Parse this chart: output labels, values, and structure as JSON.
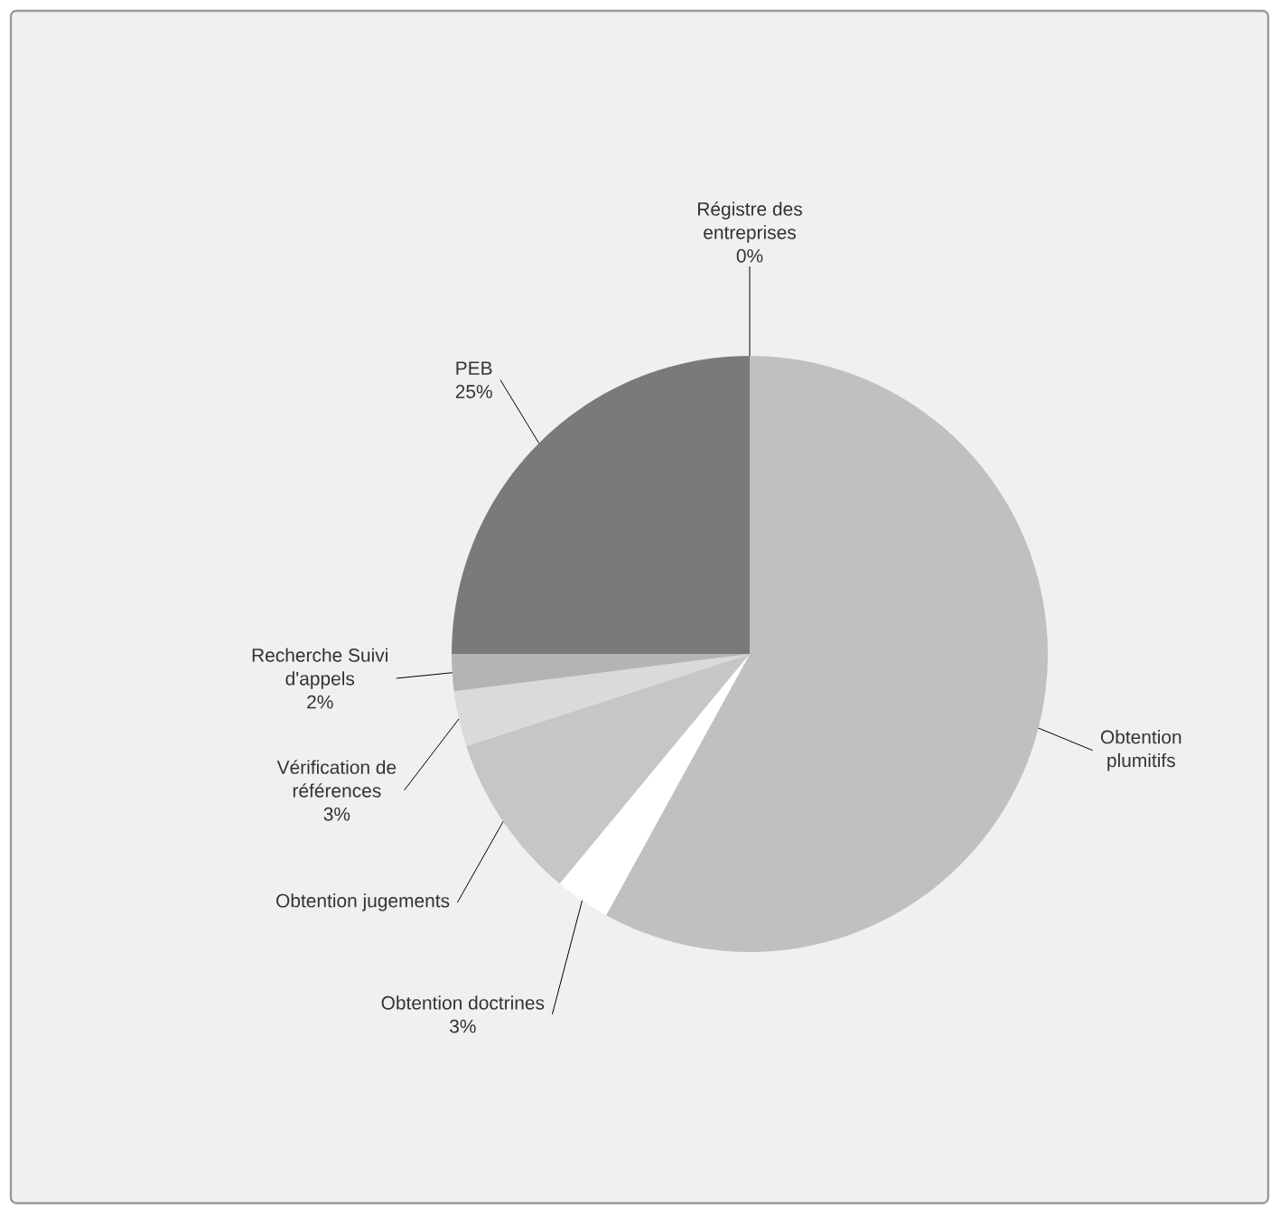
{
  "chart_data": {
    "type": "pie",
    "categories": [
      "Obtention plumitifs",
      "Obtention doctrines",
      "Obtention jugements",
      "Vérification de références",
      "Recherche Suivi d'appels",
      "PEB",
      "Régistre des entreprises"
    ],
    "values": [
      58,
      3,
      9,
      3,
      2,
      25,
      0
    ],
    "value_labels": [
      null,
      "3%",
      null,
      "3%",
      "2%",
      "25%",
      "0%"
    ],
    "colors": [
      "#c0c0c0",
      "#ffffff",
      "#c6c6c6",
      "#dadada",
      "#b4b4b4",
      "#7a7a7a",
      "#404040"
    ]
  }
}
